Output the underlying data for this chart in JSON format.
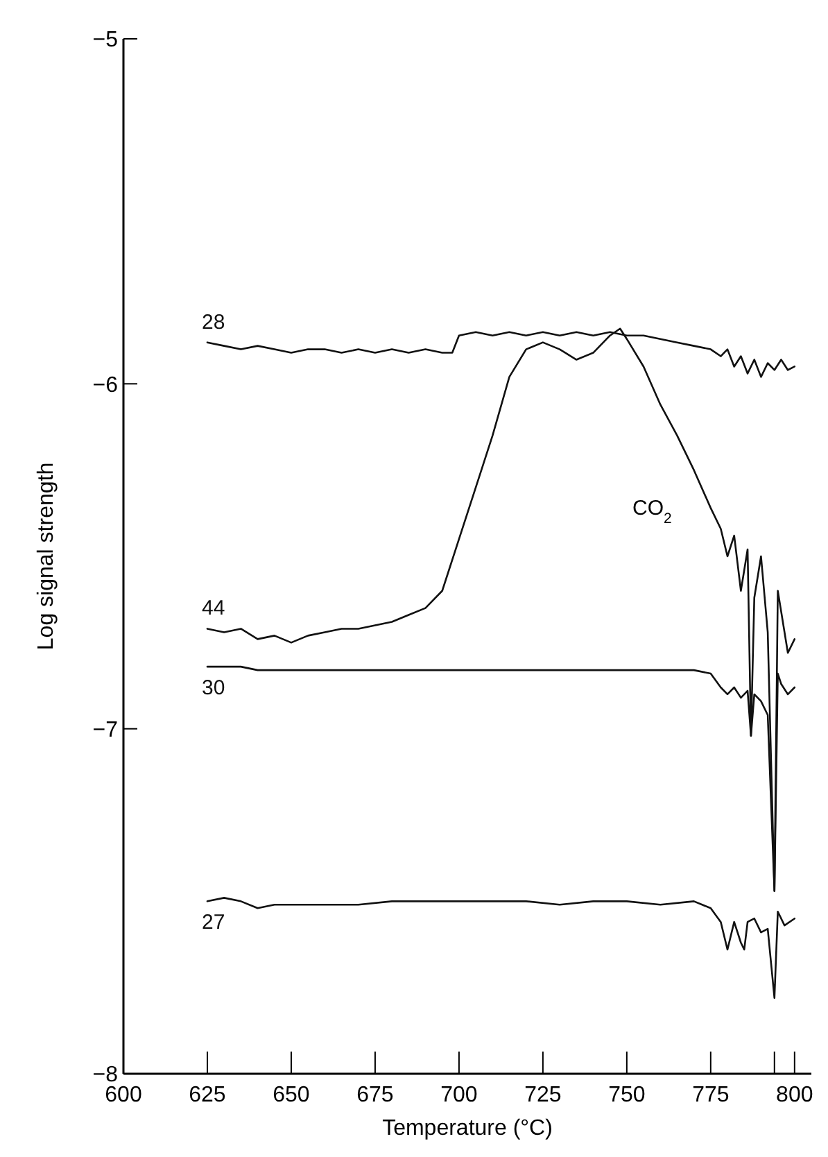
{
  "chart_data": {
    "type": "line",
    "xlabel": "Temperature (°C)",
    "ylabel": "Log signal strength",
    "xlim": [
      600,
      805
    ],
    "xticks": [
      600,
      625,
      650,
      675,
      700,
      725,
      750,
      775,
      {
        "value": 794,
        "label": null
      },
      800
    ],
    "ylim": [
      -8,
      -5
    ],
    "yticks": [
      -8,
      -7,
      -6,
      -5
    ],
    "grid": false,
    "marker": "none",
    "line_style": "solid",
    "annotations": [
      "CO$_{2}$"
    ],
    "series": [
      {
        "name": "28",
        "color": "#111111",
        "x": [
          625,
          630,
          635,
          640,
          645,
          650,
          655,
          660,
          665,
          670,
          675,
          680,
          685,
          690,
          695,
          698,
          700,
          705,
          710,
          715,
          720,
          725,
          730,
          735,
          740,
          745,
          750,
          755,
          760,
          765,
          770,
          775,
          778,
          780,
          782,
          784,
          786,
          788,
          790,
          792,
          794,
          796,
          798,
          800
        ],
        "values": [
          -5.88,
          -5.89,
          -5.9,
          -5.89,
          -5.9,
          -5.91,
          -5.9,
          -5.9,
          -5.91,
          -5.9,
          -5.91,
          -5.9,
          -5.91,
          -5.9,
          -5.91,
          -5.91,
          -5.86,
          -5.85,
          -5.86,
          -5.85,
          -5.86,
          -5.85,
          -5.86,
          -5.85,
          -5.86,
          -5.85,
          -5.86,
          -5.86,
          -5.87,
          -5.88,
          -5.89,
          -5.9,
          -5.92,
          -5.9,
          -5.95,
          -5.92,
          -5.97,
          -5.93,
          -5.98,
          -5.94,
          -5.96,
          -5.93,
          -5.96,
          -5.95
        ]
      },
      {
        "name": "44",
        "color": "#111111",
        "x": [
          625,
          630,
          635,
          640,
          645,
          650,
          655,
          660,
          665,
          670,
          675,
          680,
          685,
          690,
          695,
          700,
          705,
          710,
          715,
          720,
          725,
          730,
          735,
          740,
          745,
          748,
          750,
          755,
          760,
          765,
          770,
          775,
          778,
          780,
          782,
          784,
          786,
          787,
          788,
          790,
          792,
          794,
          795,
          796,
          798,
          800
        ],
        "values": [
          -6.71,
          -6.72,
          -6.71,
          -6.74,
          -6.73,
          -6.75,
          -6.73,
          -6.72,
          -6.71,
          -6.71,
          -6.7,
          -6.69,
          -6.67,
          -6.65,
          -6.6,
          -6.45,
          -6.3,
          -6.15,
          -5.98,
          -5.9,
          -5.88,
          -5.9,
          -5.93,
          -5.91,
          -5.86,
          -5.84,
          -5.87,
          -5.95,
          -6.06,
          -6.15,
          -6.25,
          -6.36,
          -6.42,
          -6.5,
          -6.44,
          -6.6,
          -6.48,
          -7.02,
          -6.62,
          -6.5,
          -6.72,
          -7.47,
          -6.6,
          -6.66,
          -6.78,
          -6.74
        ]
      },
      {
        "name": "30",
        "color": "#111111",
        "x": [
          625,
          630,
          635,
          640,
          645,
          650,
          660,
          670,
          680,
          690,
          700,
          710,
          720,
          730,
          740,
          750,
          760,
          770,
          775,
          778,
          780,
          782,
          784,
          786,
          787,
          788,
          790,
          792,
          794,
          795,
          796,
          798,
          800
        ],
        "values": [
          -6.82,
          -6.82,
          -6.82,
          -6.83,
          -6.83,
          -6.83,
          -6.83,
          -6.83,
          -6.83,
          -6.83,
          -6.83,
          -6.83,
          -6.83,
          -6.83,
          -6.83,
          -6.83,
          -6.83,
          -6.83,
          -6.84,
          -6.88,
          -6.9,
          -6.88,
          -6.91,
          -6.89,
          -7.02,
          -6.9,
          -6.92,
          -6.96,
          -7.47,
          -6.84,
          -6.87,
          -6.9,
          -6.88
        ]
      },
      {
        "name": "27",
        "color": "#111111",
        "x": [
          625,
          630,
          635,
          640,
          645,
          650,
          660,
          670,
          680,
          690,
          700,
          710,
          720,
          730,
          740,
          750,
          760,
          770,
          775,
          778,
          780,
          782,
          784,
          785,
          786,
          788,
          790,
          792,
          794,
          795,
          797,
          800
        ],
        "values": [
          -7.5,
          -7.49,
          -7.5,
          -7.52,
          -7.51,
          -7.51,
          -7.51,
          -7.51,
          -7.5,
          -7.5,
          -7.5,
          -7.5,
          -7.5,
          -7.51,
          -7.5,
          -7.5,
          -7.51,
          -7.5,
          -7.52,
          -7.56,
          -7.64,
          -7.56,
          -7.62,
          -7.64,
          -7.56,
          -7.55,
          -7.59,
          -7.58,
          -7.78,
          -7.53,
          -7.57,
          -7.55
        ]
      }
    ]
  }
}
